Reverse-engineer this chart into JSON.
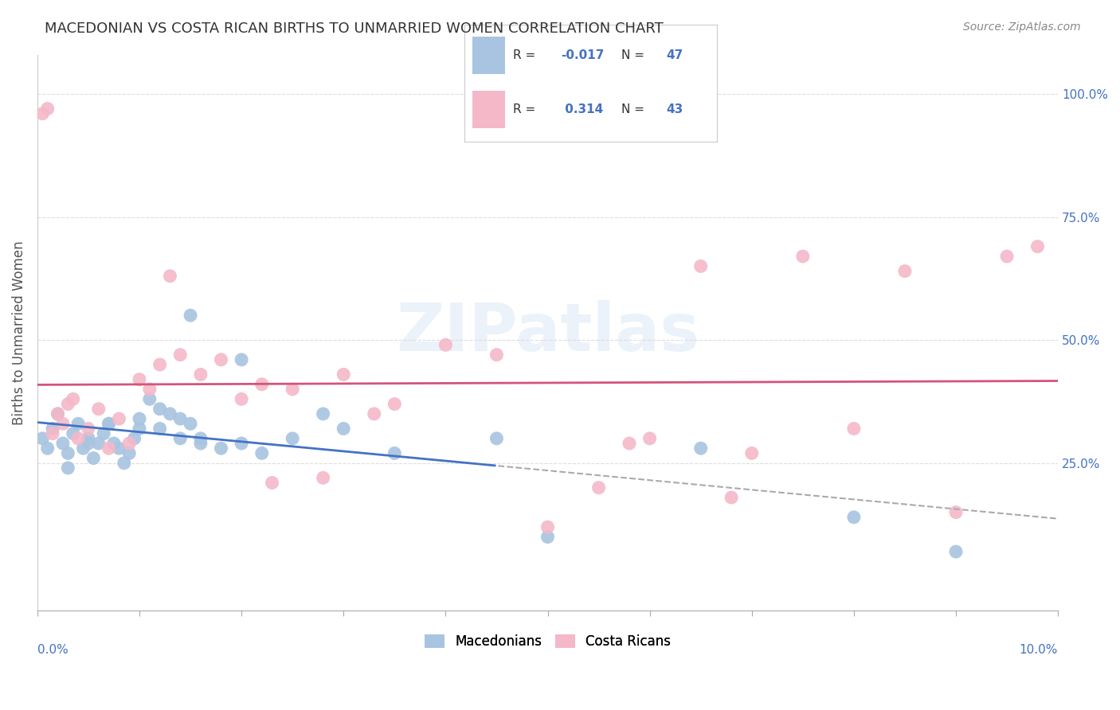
{
  "title": "MACEDONIAN VS COSTA RICAN BIRTHS TO UNMARRIED WOMEN CORRELATION CHART",
  "source": "Source: ZipAtlas.com",
  "ylabel": "Births to Unmarried Women",
  "xlim": [
    0.0,
    10.0
  ],
  "ylim": [
    -5.0,
    108.0
  ],
  "right_ytick_positions": [
    25.0,
    50.0,
    75.0,
    100.0
  ],
  "right_yticklabels": [
    "25.0%",
    "50.0%",
    "75.0%",
    "100.0%"
  ],
  "legend_r_mac": "-0.017",
  "legend_n_mac": "47",
  "legend_r_cr": "0.314",
  "legend_n_cr": "43",
  "mac_color": "#a8c4e0",
  "cr_color": "#f4b8c8",
  "mac_line_color": "#4472c4",
  "cr_line_color": "#d4547a",
  "dash_line_color": "#aaaaaa",
  "grid_color": "#dddddd",
  "watermark": "ZIPatlas",
  "macedonians_x": [
    0.05,
    0.1,
    0.15,
    0.2,
    0.25,
    0.3,
    0.35,
    0.4,
    0.45,
    0.5,
    0.55,
    0.6,
    0.65,
    0.7,
    0.75,
    0.8,
    0.85,
    0.9,
    0.95,
    1.0,
    1.1,
    1.2,
    1.3,
    1.4,
    1.5,
    1.6,
    1.8,
    2.0,
    2.2,
    2.5,
    0.3,
    0.5,
    0.7,
    1.0,
    1.2,
    1.4,
    1.6,
    2.0,
    2.8,
    3.5,
    4.5,
    5.0,
    6.5,
    8.0,
    9.0,
    1.5,
    3.0
  ],
  "macedonians_y": [
    30,
    28,
    32,
    35,
    29,
    27,
    31,
    33,
    28,
    30,
    26,
    29,
    31,
    33,
    29,
    28,
    25,
    27,
    30,
    32,
    38,
    36,
    35,
    34,
    33,
    30,
    28,
    29,
    27,
    30,
    24,
    29,
    33,
    34,
    32,
    30,
    29,
    46,
    35,
    27,
    30,
    10,
    28,
    14,
    7,
    55,
    32
  ],
  "costaricans_x": [
    0.05,
    0.1,
    0.15,
    0.2,
    0.25,
    0.3,
    0.35,
    0.4,
    0.5,
    0.6,
    0.7,
    0.8,
    0.9,
    1.0,
    1.1,
    1.2,
    1.4,
    1.6,
    1.8,
    2.0,
    2.2,
    2.5,
    2.8,
    3.0,
    3.5,
    4.0,
    4.5,
    5.0,
    5.5,
    6.0,
    6.5,
    7.0,
    8.0,
    8.5,
    9.0,
    9.5,
    9.8,
    1.3,
    2.3,
    3.3,
    5.8,
    6.8,
    7.5
  ],
  "costaricans_y": [
    96,
    97,
    31,
    35,
    33,
    37,
    38,
    30,
    32,
    36,
    28,
    34,
    29,
    42,
    40,
    45,
    47,
    43,
    46,
    38,
    41,
    40,
    22,
    43,
    37,
    49,
    47,
    12,
    20,
    30,
    65,
    27,
    32,
    64,
    15,
    67,
    69,
    63,
    21,
    35,
    29,
    18,
    67
  ]
}
